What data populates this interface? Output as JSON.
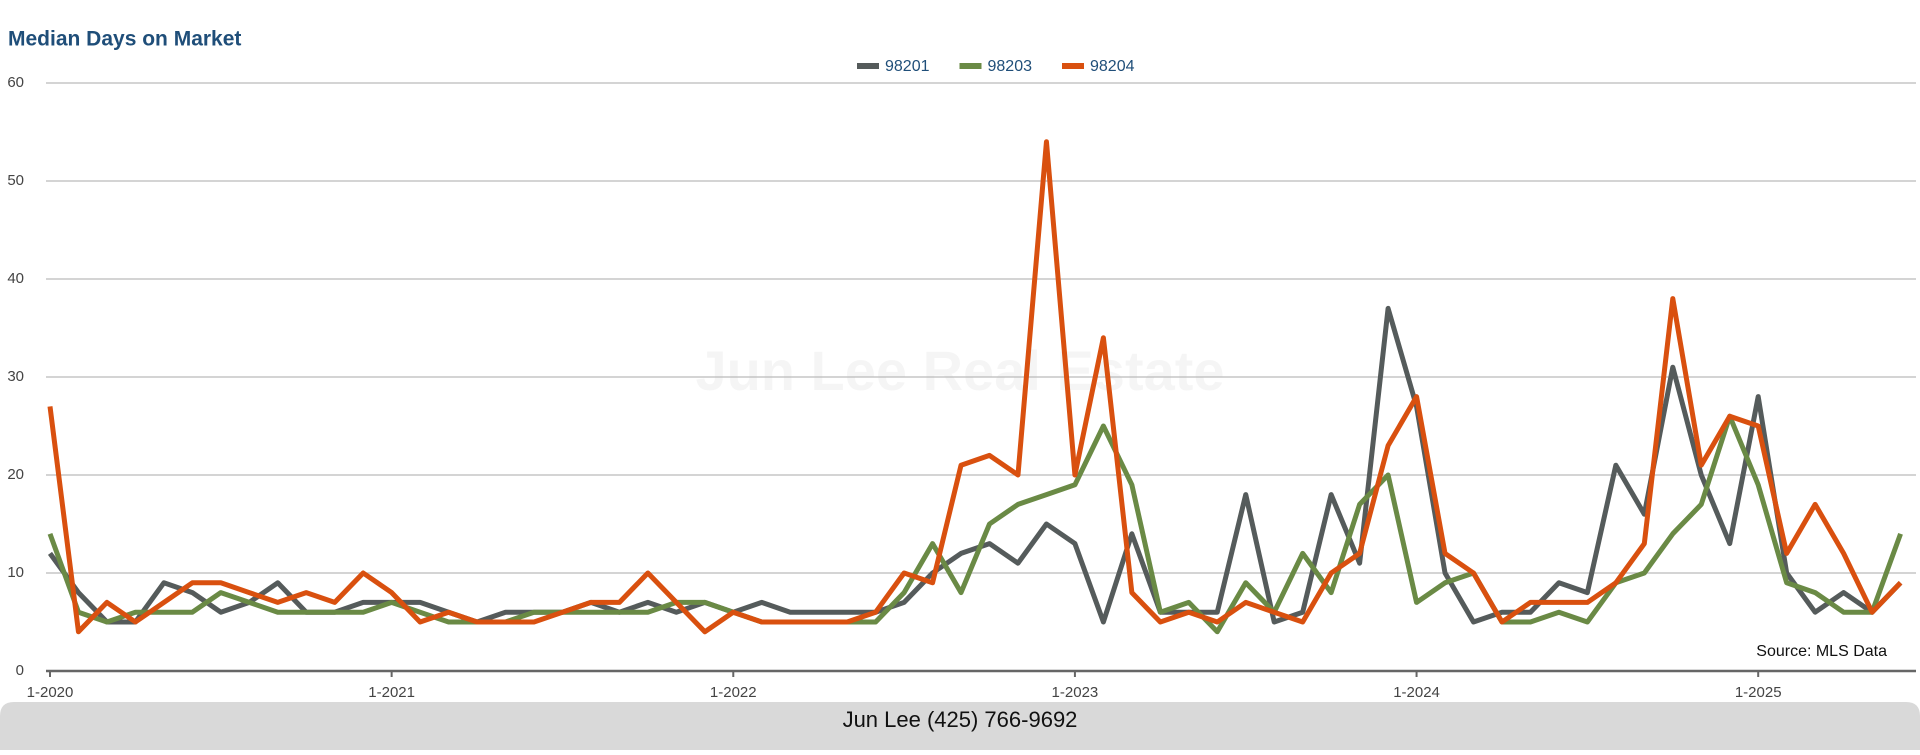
{
  "chart_data": {
    "type": "line",
    "title": "Median Days on Market",
    "watermark": "Jun Lee Real Estate",
    "source": "Source: MLS Data",
    "footer": "Jun Lee (425) 766-9692",
    "categories": [
      "1-2020",
      null,
      null,
      null,
      null,
      null,
      null,
      null,
      null,
      null,
      null,
      null,
      "1-2021",
      null,
      null,
      null,
      null,
      null,
      null,
      null,
      null,
      null,
      null,
      null,
      "1-2022",
      null,
      null,
      null,
      null,
      null,
      null,
      null,
      null,
      null,
      null,
      null,
      "1-2023",
      null,
      null,
      null,
      null,
      null,
      null,
      null,
      null,
      null,
      null,
      null,
      "1-2024",
      null,
      null,
      null,
      null,
      null,
      null,
      null,
      null,
      null,
      null,
      null,
      "1-2025",
      null,
      null,
      null,
      null,
      null
    ],
    "series": [
      {
        "name": "98201",
        "color": "#555b5b",
        "values": [
          12,
          8,
          5,
          5,
          9,
          8,
          6,
          7,
          9,
          6,
          6,
          7,
          7,
          7,
          6,
          5,
          6,
          6,
          6,
          7,
          6,
          7,
          6,
          7,
          6,
          7,
          6,
          6,
          6,
          6,
          7,
          10,
          12,
          13,
          11,
          15,
          13,
          5,
          14,
          6,
          6,
          6,
          18,
          5,
          6,
          18,
          11,
          37,
          27,
          10,
          5,
          6,
          6,
          9,
          8,
          21,
          16,
          31,
          20,
          13,
          28,
          10,
          6,
          8,
          6,
          9
        ]
      },
      {
        "name": "98203",
        "color": "#6a8a45",
        "values": [
          14,
          6,
          5,
          6,
          6,
          6,
          8,
          7,
          6,
          6,
          6,
          6,
          7,
          6,
          5,
          5,
          5,
          6,
          6,
          6,
          6,
          6,
          7,
          7,
          6,
          5,
          5,
          5,
          5,
          5,
          8,
          13,
          8,
          15,
          17,
          18,
          19,
          25,
          19,
          6,
          7,
          4,
          9,
          6,
          12,
          8,
          17,
          20,
          7,
          9,
          10,
          5,
          5,
          6,
          5,
          9,
          10,
          14,
          17,
          26,
          19,
          9,
          8,
          6,
          6,
          14
        ]
      },
      {
        "name": "98204",
        "color": "#d9500f",
        "values": [
          27,
          4,
          7,
          5,
          7,
          9,
          9,
          8,
          7,
          8,
          7,
          10,
          8,
          5,
          6,
          5,
          5,
          5,
          6,
          7,
          7,
          10,
          7,
          4,
          6,
          5,
          5,
          5,
          5,
          6,
          10,
          9,
          21,
          22,
          20,
          54,
          20,
          34,
          8,
          5,
          6,
          5,
          7,
          6,
          5,
          10,
          12,
          23,
          28,
          12,
          10,
          5,
          7,
          7,
          7,
          9,
          13,
          38,
          21,
          26,
          25,
          12,
          17,
          12,
          6,
          9
        ]
      }
    ],
    "ylim": [
      0,
      60
    ],
    "yticks": [
      0,
      10,
      20,
      30,
      40,
      50,
      60
    ],
    "grid": true
  }
}
